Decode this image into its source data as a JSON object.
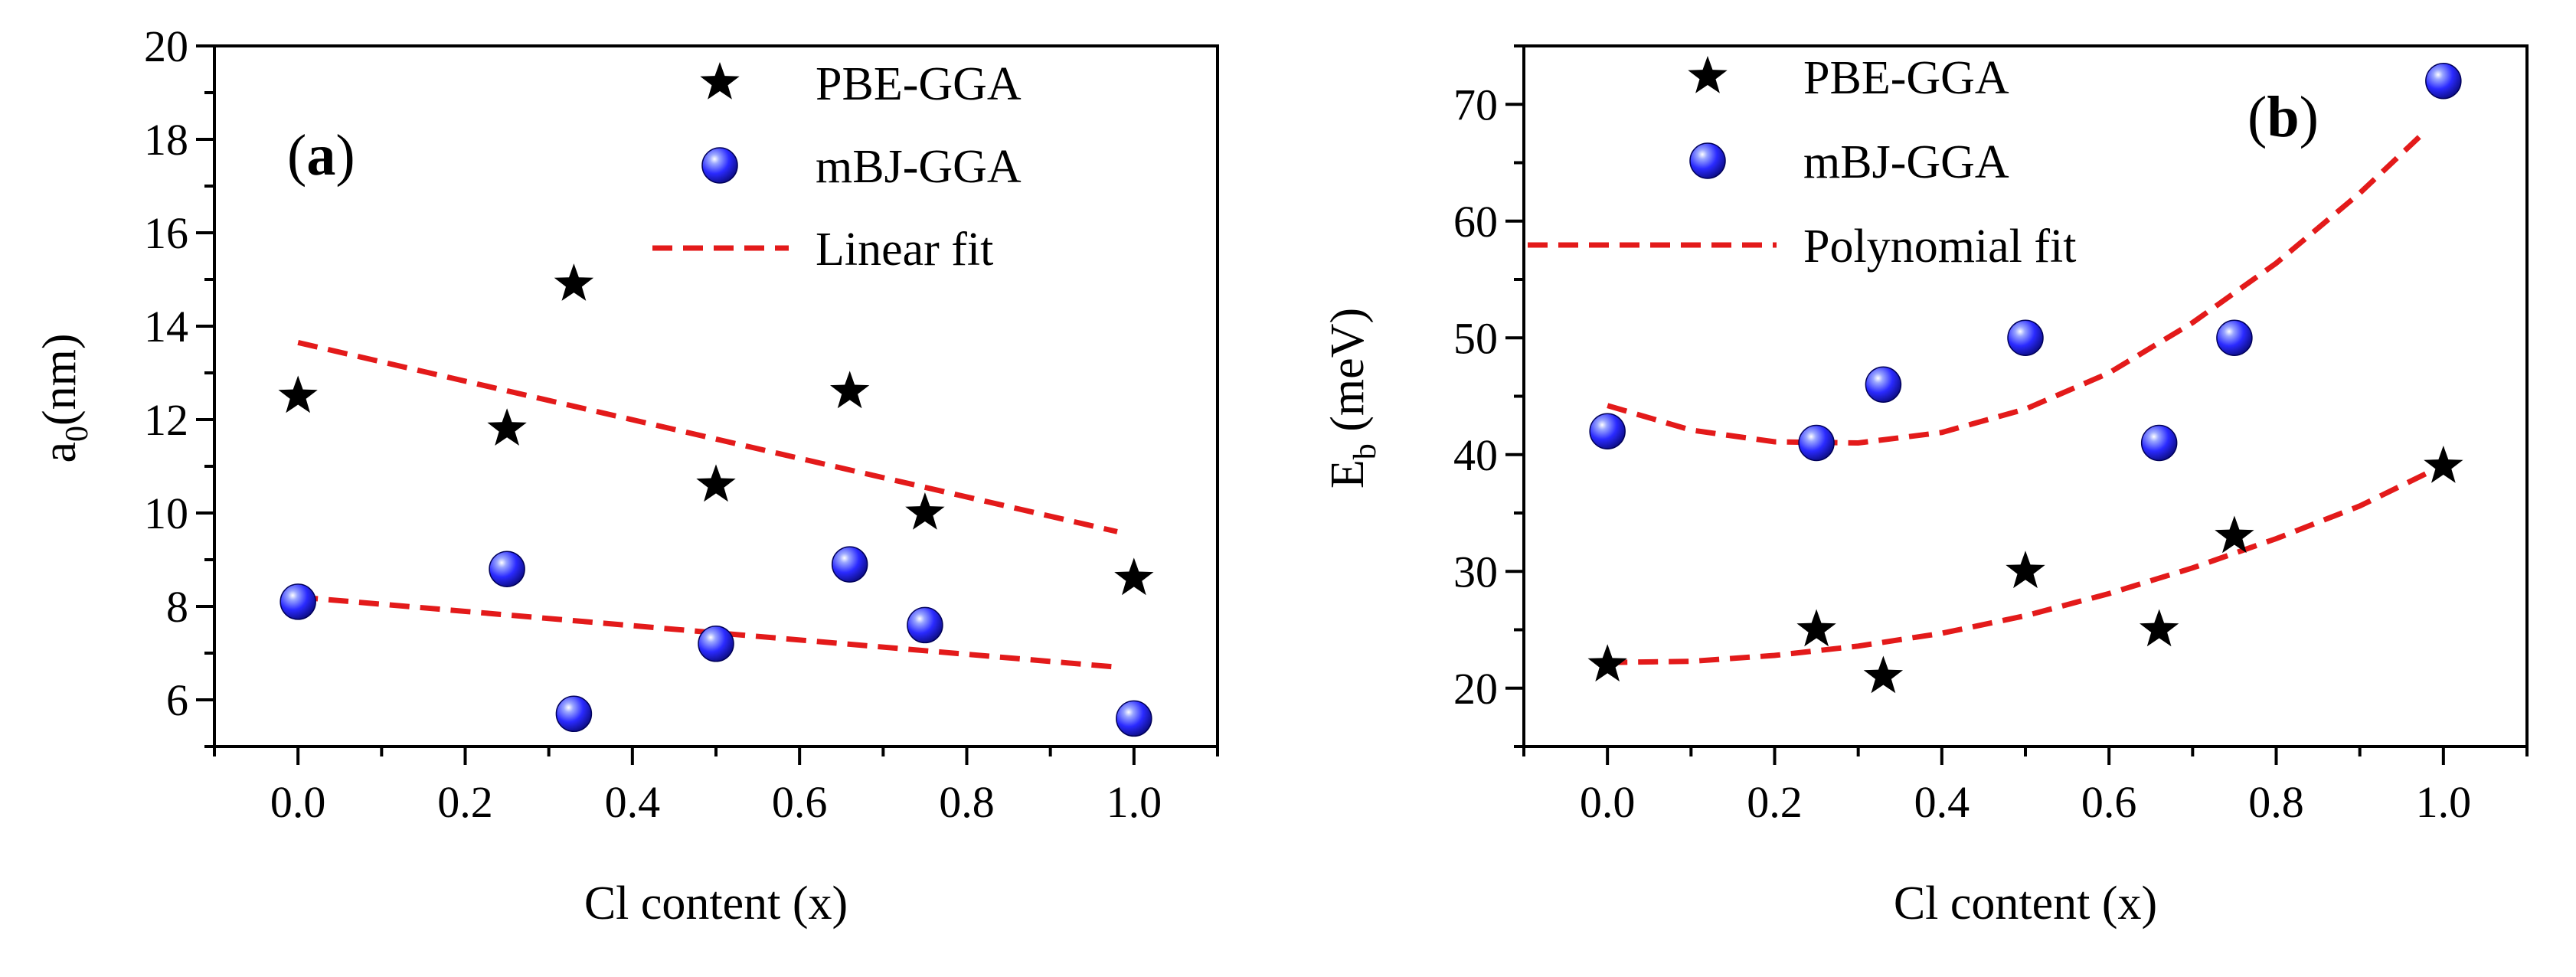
{
  "chart_data": [
    {
      "panel": "a",
      "type": "scatter",
      "panel_label": "a",
      "xlabel": "Cl content (x)",
      "ylabel_main": "a",
      "ylabel_sub": "0",
      "ylabel_unit": "(nm)",
      "xlim": [
        -0.1,
        1.1
      ],
      "ylim": [
        5,
        20
      ],
      "x_ticks": [
        0.0,
        0.2,
        0.4,
        0.6,
        0.8,
        1.0
      ],
      "x_tick_labels": [
        "0.0",
        "0.2",
        "0.4",
        "0.6",
        "0.8",
        "1.0"
      ],
      "y_ticks": [
        6,
        8,
        10,
        12,
        14,
        16,
        18,
        20
      ],
      "y_tick_labels": [
        "6",
        "8",
        "10",
        "12",
        "14",
        "16",
        "18",
        "20"
      ],
      "legend_position": "top-right",
      "legend": [
        "PBE-GGA",
        "mBJ-GGA",
        "Linear fit"
      ],
      "series": [
        {
          "name": "PBE-GGA",
          "marker": "star",
          "color": "#000000",
          "x": [
            0.0,
            0.25,
            0.33,
            0.5,
            0.66,
            0.75,
            1.0
          ],
          "y": [
            12.5,
            11.8,
            14.9,
            10.6,
            12.6,
            10.0,
            8.6
          ]
        },
        {
          "name": "mBJ-GGA",
          "marker": "sphere",
          "color": "#1a1ae6",
          "x": [
            0.0,
            0.25,
            0.33,
            0.5,
            0.66,
            0.75,
            1.0
          ],
          "y": [
            8.1,
            8.8,
            5.7,
            7.2,
            8.9,
            7.6,
            5.6
          ]
        }
      ],
      "fits": [
        {
          "name": "Linear fit",
          "of": "PBE-GGA",
          "color": "#e31a1a",
          "x": [
            0.0,
            0.98
          ],
          "y": [
            13.65,
            9.6
          ]
        },
        {
          "name": "Linear fit",
          "of": "mBJ-GGA",
          "color": "#e31a1a",
          "x": [
            0.0,
            0.98
          ],
          "y": [
            8.2,
            6.7
          ]
        }
      ]
    },
    {
      "panel": "b",
      "type": "scatter",
      "panel_label": "b",
      "xlabel": "Cl content (x)",
      "ylabel_main": "E",
      "ylabel_sub": "b",
      "ylabel_unit": " (meV)",
      "xlim": [
        -0.1,
        1.1
      ],
      "ylim": [
        15,
        75
      ],
      "x_ticks": [
        0.0,
        0.2,
        0.4,
        0.6,
        0.8,
        1.0
      ],
      "x_tick_labels": [
        "0.0",
        "0.2",
        "0.4",
        "0.6",
        "0.8",
        "1.0"
      ],
      "y_ticks": [
        20,
        30,
        40,
        50,
        60,
        70
      ],
      "y_tick_labels": [
        "20",
        "30",
        "40",
        "50",
        "60",
        "70"
      ],
      "legend_position": "top-left",
      "legend": [
        "PBE-GGA",
        "mBJ-GGA",
        "Polynomial fit"
      ],
      "series": [
        {
          "name": "PBE-GGA",
          "marker": "star",
          "color": "#000000",
          "x": [
            0.0,
            0.25,
            0.33,
            0.5,
            0.66,
            0.75,
            1.0
          ],
          "y": [
            22,
            25,
            21,
            30,
            25,
            33,
            39
          ]
        },
        {
          "name": "mBJ-GGA",
          "marker": "sphere",
          "color": "#1a1ae6",
          "x": [
            0.0,
            0.25,
            0.33,
            0.5,
            0.66,
            0.75,
            1.0
          ],
          "y": [
            42,
            41,
            46,
            50,
            41,
            50,
            72
          ]
        }
      ],
      "fits": [
        {
          "name": "Polynomial fit",
          "of": "PBE-GGA",
          "color": "#e31a1a",
          "x": [
            0.0,
            0.1,
            0.2,
            0.3,
            0.4,
            0.5,
            0.6,
            0.7,
            0.8,
            0.9,
            0.98
          ],
          "y": [
            22.2,
            22.3,
            22.8,
            23.6,
            24.7,
            26.2,
            28.1,
            30.3,
            32.8,
            35.6,
            38.4
          ]
        },
        {
          "name": "Polynomial fit",
          "of": "mBJ-GGA",
          "color": "#e31a1a",
          "x": [
            0.0,
            0.1,
            0.2,
            0.3,
            0.4,
            0.5,
            0.6,
            0.7,
            0.8,
            0.9,
            0.98
          ],
          "y": [
            44.2,
            42.1,
            41.1,
            41.0,
            41.9,
            43.9,
            47.0,
            51.3,
            56.4,
            62.4,
            67.8
          ]
        }
      ]
    }
  ]
}
